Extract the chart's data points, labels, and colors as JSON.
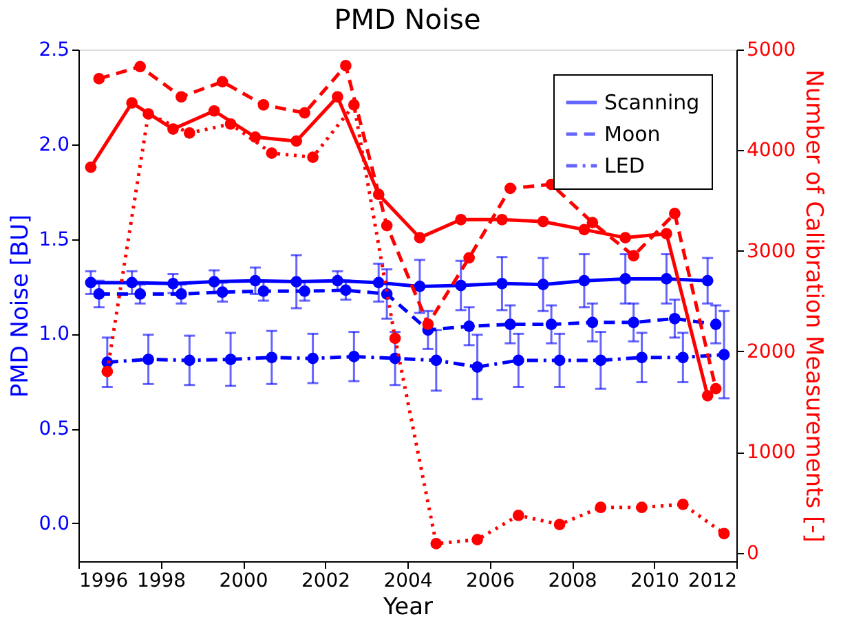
{
  "chart_data": {
    "type": "line",
    "title": "PMD Noise",
    "xlabel": "Year",
    "ylabel": "PMD Noise [BU]",
    "y2label": "Number of Calibration Measurements [-]",
    "xlim": [
      1996,
      2012
    ],
    "xticks": [
      1996,
      1998,
      2000,
      2002,
      2004,
      2006,
      2008,
      2010,
      2012
    ],
    "ylim": [
      -0.2,
      2.5
    ],
    "yticks": [
      {
        "value": 0,
        "label": "0.0"
      },
      {
        "value": 0.5,
        "label": "0.5"
      },
      {
        "value": 1,
        "label": "1.0"
      },
      {
        "value": 1.5,
        "label": "1.5"
      },
      {
        "value": 2,
        "label": "2.0"
      },
      {
        "value": 2.5,
        "label": "2.5"
      }
    ],
    "y2lim": [
      -85,
      5000
    ],
    "y2ticks": [
      0,
      1000,
      2000,
      3000,
      4000,
      5000
    ],
    "grid": false,
    "legend": "top right",
    "marker": "circle",
    "series": [
      {
        "name": "Scanning",
        "color": "#0000ff",
        "line_style": "solid",
        "x": [
          1996.3,
          1997.3,
          1998.3,
          1999.3,
          2000.3,
          2001.3,
          2002.3,
          2003.3,
          2004.3,
          2005.3,
          2006.3,
          2007.3,
          2008.3,
          2009.3,
          2010.3,
          2011.3
        ],
        "values": [
          1.27,
          1.27,
          1.265,
          1.275,
          1.28,
          1.275,
          1.28,
          1.27,
          1.25,
          1.255,
          1.265,
          1.26,
          1.28,
          1.29,
          1.29,
          1.28
        ],
        "errors": [
          0.06,
          0.06,
          0.05,
          0.06,
          0.07,
          0.14,
          0.05,
          0.1,
          0.14,
          0.13,
          0.14,
          0.14,
          0.14,
          0.13,
          0.13,
          0.12
        ]
      },
      {
        "name": "Moon",
        "color": "#0000ff",
        "line_style": "dashed",
        "x": [
          1996.5,
          1997.5,
          1998.5,
          1999.5,
          2000.5,
          2001.5,
          2002.5,
          2003.5,
          2004.5,
          2005.5,
          2006.5,
          2007.5,
          2008.5,
          2009.5,
          2010.5,
          2011.5
        ],
        "values": [
          1.21,
          1.21,
          1.21,
          1.22,
          1.225,
          1.225,
          1.23,
          1.21,
          1.02,
          1.04,
          1.05,
          1.05,
          1.06,
          1.06,
          1.08,
          1.05
        ],
        "errors": [
          0.07,
          0.05,
          0.05,
          0.05,
          0.05,
          0.05,
          0.05,
          0.13,
          0.1,
          0.1,
          0.1,
          0.1,
          0.1,
          0.1,
          0.1,
          0.1
        ]
      },
      {
        "name": "LED",
        "color": "#0000ff",
        "line_style": "dashdot",
        "x": [
          1996.7,
          1997.7,
          1998.7,
          1999.7,
          2000.7,
          2001.7,
          2002.7,
          2003.7,
          2004.7,
          2005.7,
          2006.7,
          2007.7,
          2008.7,
          2009.7,
          2010.7,
          2011.7
        ],
        "values": [
          0.85,
          0.865,
          0.86,
          0.865,
          0.875,
          0.87,
          0.88,
          0.87,
          0.86,
          0.825,
          0.86,
          0.86,
          0.86,
          0.875,
          0.875,
          0.89
        ],
        "errors": [
          0.13,
          0.13,
          0.13,
          0.14,
          0.14,
          0.13,
          0.13,
          0.14,
          0.16,
          0.17,
          0.14,
          0.14,
          0.15,
          0.13,
          0.13,
          0.23
        ]
      },
      {
        "color": "#ff0000",
        "axis": "y2",
        "line_style": "solid",
        "x": [
          1996.3,
          1997.3,
          1998.3,
          1999.3,
          2000.3,
          2001.3,
          2002.3,
          2003.3,
          2004.3,
          2005.3,
          2006.3,
          2007.3,
          2008.3,
          2009.3,
          2010.3,
          2011.3
        ],
        "values": [
          3830,
          4470,
          4210,
          4390,
          4130,
          4090,
          4530,
          3560,
          3130,
          3310,
          3310,
          3290,
          3210,
          3130,
          3170,
          1560
        ]
      },
      {
        "color": "#ff0000",
        "axis": "y2",
        "line_style": "dashed",
        "x": [
          1996.5,
          1997.5,
          1998.5,
          1999.5,
          2000.5,
          2001.5,
          2002.5,
          2003.5,
          2004.5,
          2005.5,
          2006.5,
          2007.5,
          2008.5,
          2009.5,
          2010.5,
          2011.5
        ],
        "values": [
          4710,
          4830,
          4530,
          4680,
          4450,
          4370,
          4840,
          3250,
          2270,
          2930,
          3620,
          3660,
          3280,
          2950,
          3370,
          1630
        ]
      },
      {
        "color": "#ff0000",
        "axis": "y2",
        "line_style": "dotted",
        "x": [
          1996.7,
          1997.7,
          1998.7,
          1999.7,
          2000.7,
          2001.7,
          2002.7,
          2003.7,
          2004.7,
          2005.7,
          2006.7,
          2007.7,
          2008.7,
          2009.7,
          2010.7,
          2011.7
        ],
        "values": [
          1800,
          4360,
          4170,
          4260,
          3970,
          3930,
          4450,
          2130,
          90,
          130,
          370,
          280,
          450,
          450,
          480,
          190
        ]
      }
    ]
  }
}
